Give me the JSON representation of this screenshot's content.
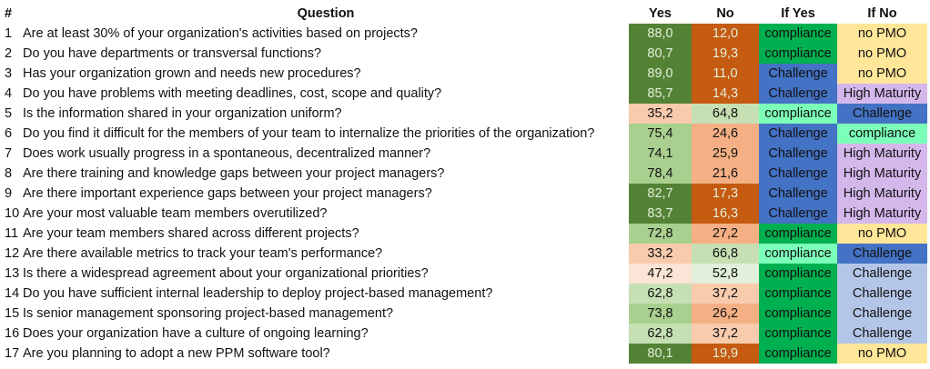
{
  "headers": [
    "#",
    "Question",
    "Yes",
    "No",
    "If Yes",
    "If No"
  ],
  "colors": {
    "dark_green": "#548235",
    "orange": "#C55A11",
    "light_green": "#A9D08E",
    "pale_green": "#C6E0B4",
    "very_pale_green": "#E2EFDA",
    "salmon": "#F4B084",
    "light_salmon": "#F8CBAD",
    "very_light_salmon": "#FCE4D6",
    "compliance": "#00B050",
    "compliance_light": "#7CFFB8",
    "challenge": "#4472C4",
    "challenge_light": "#B4C6E7",
    "no_pmo": "#FFE699",
    "high_maturity": "#D4B8EC"
  },
  "rows": [
    {
      "n": "1",
      "q": "Are at least 30% of your organization's activities based on projects?",
      "yes": "88,0",
      "no": "12,0",
      "ify": "compliance",
      "ifn": "no PMO",
      "cy": "#548235",
      "cn": "#C55A11",
      "ciy": "#00B050",
      "cin": "#FFE699"
    },
    {
      "n": "2",
      "q": "Do you have departments or transversal functions?",
      "yes": "80,7",
      "no": "19,3",
      "ify": "compliance",
      "ifn": "no PMO",
      "cy": "#548235",
      "cn": "#C55A11",
      "ciy": "#00B050",
      "cin": "#FFE699"
    },
    {
      "n": "3",
      "q": "Has your organization grown and needs new procedures?",
      "yes": "89,0",
      "no": "11,0",
      "ify": "Challenge",
      "ifn": "no PMO",
      "cy": "#548235",
      "cn": "#C55A11",
      "ciy": "#4472C4",
      "cin": "#FFE699"
    },
    {
      "n": "4",
      "q": "Do you have problems with meeting deadlines, cost, scope and quality?",
      "yes": "85,7",
      "no": "14,3",
      "ify": "Challenge",
      "ifn": "High Maturity",
      "cy": "#548235",
      "cn": "#C55A11",
      "ciy": "#4472C4",
      "cin": "#D4B8EC"
    },
    {
      "n": "5",
      "q": "Is the information shared in your organization uniform?",
      "yes": "35,2",
      "no": "64,8",
      "ify": "compliance",
      "ifn": "Challenge",
      "cy": "#F8CBAD",
      "cn": "#C6E0B4",
      "ciy": "#7CFFB8",
      "cin": "#4472C4"
    },
    {
      "n": "6",
      "q": "Do you find it difficult for the members of your team to internalize the priorities of the organization?",
      "yes": "75,4",
      "no": "24,6",
      "ify": "Challenge",
      "ifn": "compliance",
      "cy": "#A9D08E",
      "cn": "#F4B084",
      "ciy": "#4472C4",
      "cin": "#7CFFB8"
    },
    {
      "n": "7",
      "q": "Does work usually progress in a spontaneous, decentralized manner?",
      "yes": "74,1",
      "no": "25,9",
      "ify": "Challenge",
      "ifn": "High Maturity",
      "cy": "#A9D08E",
      "cn": "#F4B084",
      "ciy": "#4472C4",
      "cin": "#D4B8EC"
    },
    {
      "n": "8",
      "q": "Are there training and knowledge gaps between your project managers?",
      "yes": "78,4",
      "no": "21,6",
      "ify": "Challenge",
      "ifn": "High Maturity",
      "cy": "#A9D08E",
      "cn": "#F4B084",
      "ciy": "#4472C4",
      "cin": "#D4B8EC"
    },
    {
      "n": "9",
      "q": "Are there important experience gaps between your project managers?",
      "yes": "82,7",
      "no": "17,3",
      "ify": "Challenge",
      "ifn": "High Maturity",
      "cy": "#548235",
      "cn": "#C55A11",
      "ciy": "#4472C4",
      "cin": "#D4B8EC"
    },
    {
      "n": "10",
      "q": "Are your most valuable team members overutilized?",
      "yes": "83,7",
      "no": "16,3",
      "ify": "Challenge",
      "ifn": "High Maturity",
      "cy": "#548235",
      "cn": "#C55A11",
      "ciy": "#4472C4",
      "cin": "#D4B8EC"
    },
    {
      "n": "11",
      "q": "Are your team members shared across different projects?",
      "yes": "72,8",
      "no": "27,2",
      "ify": "compliance",
      "ifn": "no PMO",
      "cy": "#A9D08E",
      "cn": "#F4B084",
      "ciy": "#00B050",
      "cin": "#FFE699"
    },
    {
      "n": "12",
      "q": "Are there available metrics to track your team's performance?",
      "yes": "33,2",
      "no": "66,8",
      "ify": "compliance",
      "ifn": "Challenge",
      "cy": "#F8CBAD",
      "cn": "#C6E0B4",
      "ciy": "#7CFFB8",
      "cin": "#4472C4"
    },
    {
      "n": "13",
      "q": "Is there a widespread agreement about your organizational priorities?",
      "yes": "47,2",
      "no": "52,8",
      "ify": "compliance",
      "ifn": "Challenge",
      "cy": "#FCE4D6",
      "cn": "#E2EFDA",
      "ciy": "#00B050",
      "cin": "#B4C6E7"
    },
    {
      "n": "14",
      "q": "Do you have sufficient internal leadership to deploy project-based management?",
      "yes": "62,8",
      "no": "37,2",
      "ify": "compliance",
      "ifn": "Challenge",
      "cy": "#C6E0B4",
      "cn": "#F8CBAD",
      "ciy": "#00B050",
      "cin": "#B4C6E7"
    },
    {
      "n": "15",
      "q": "Is senior management sponsoring project-based management?",
      "yes": "73,8",
      "no": "26,2",
      "ify": "compliance",
      "ifn": "Challenge",
      "cy": "#A9D08E",
      "cn": "#F4B084",
      "ciy": "#00B050",
      "cin": "#B4C6E7"
    },
    {
      "n": "16",
      "q": "Does your organization have a culture of ongoing learning?",
      "yes": "62,8",
      "no": "37,2",
      "ify": "compliance",
      "ifn": "Challenge",
      "cy": "#C6E0B4",
      "cn": "#F8CBAD",
      "ciy": "#00B050",
      "cin": "#B4C6E7"
    },
    {
      "n": "17",
      "q": "Are you planning to adopt a new PPM software tool?",
      "yes": "80,1",
      "no": "19,9",
      "ify": "compliance",
      "ifn": "no PMO",
      "cy": "#548235",
      "cn": "#C55A11",
      "ciy": "#00B050",
      "cin": "#FFE699"
    }
  ]
}
